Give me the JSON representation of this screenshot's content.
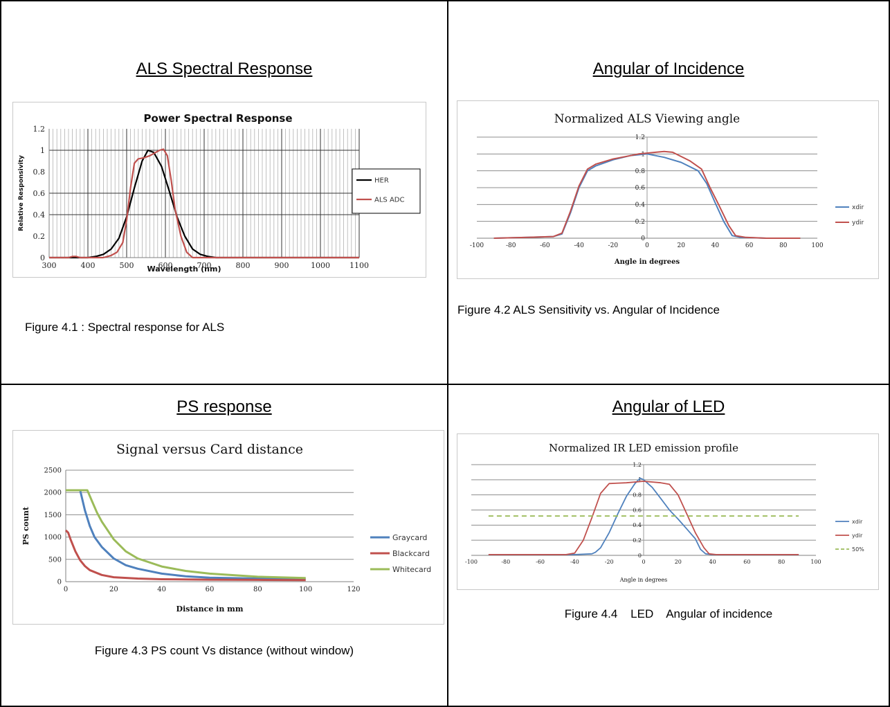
{
  "cells": [
    {
      "title": "ALS Spectral Response",
      "caption": "Figure 4.1 : Spectral response for ALS"
    },
    {
      "title": "Angular of Incidence",
      "caption": "Figure 4.2 ALS Sensitivity vs. Angular of Incidence"
    },
    {
      "title": "PS response",
      "caption": "Figure 4.3 PS count Vs distance (without window)"
    },
    {
      "title": "Angular of LED",
      "caption": "Figure 4.4    LED    Angular of incidence"
    }
  ],
  "chart_data": [
    {
      "type": "line",
      "title": "Power Spectral Response",
      "xlabel": "Wavelength (nm)",
      "ylabel": "Relative Responsivity",
      "xlim": [
        300,
        1100
      ],
      "ylim": [
        0,
        1.2
      ],
      "xticks": [
        "300",
        "400",
        "500",
        "600",
        "700",
        "800",
        "900",
        "1000",
        "1100"
      ],
      "yticks": [
        "0",
        "0.2",
        "0.4",
        "0.6",
        "0.8",
        "1",
        "1.2"
      ],
      "legend_position": "right",
      "colors": {
        "HER": "#000000",
        "ALS ADC": "#c0504d"
      },
      "series": [
        {
          "name": "HER",
          "x": [
            300,
            400,
            420,
            440,
            460,
            480,
            500,
            520,
            540,
            555,
            570,
            590,
            610,
            630,
            650,
            670,
            690,
            710,
            730,
            1100
          ],
          "y": [
            0,
            0,
            0.01,
            0.03,
            0.08,
            0.18,
            0.38,
            0.65,
            0.9,
            1.0,
            0.98,
            0.85,
            0.62,
            0.38,
            0.2,
            0.08,
            0.03,
            0.01,
            0,
            0
          ]
        },
        {
          "name": "ALS ADC",
          "x": [
            300,
            350,
            360,
            370,
            380,
            440,
            460,
            475,
            490,
            500,
            510,
            520,
            530,
            545,
            560,
            575,
            585,
            595,
            605,
            615,
            625,
            640,
            655,
            670,
            1100
          ],
          "y": [
            0,
            0,
            0.01,
            0.01,
            0,
            0,
            0.02,
            0.05,
            0.14,
            0.35,
            0.65,
            0.88,
            0.92,
            0.93,
            0.95,
            0.98,
            1.0,
            1.01,
            0.95,
            0.72,
            0.45,
            0.2,
            0.05,
            0,
            0
          ]
        }
      ]
    },
    {
      "type": "line",
      "title": "Normalized ALS Viewing angle",
      "xlabel": "Angle in degrees",
      "ylabel": "",
      "xlim": [
        -100,
        100
      ],
      "ylim": [
        0,
        1.2
      ],
      "xticks": [
        "-100",
        "-80",
        "-60",
        "-40",
        "-20",
        "0",
        "20",
        "40",
        "60",
        "80",
        "100"
      ],
      "yticks": [
        "0",
        "0.2",
        "0.4",
        "0.6",
        "0.8",
        "1",
        "1.2"
      ],
      "legend_position": "right",
      "colors": {
        "xdir": "#4f81bd",
        "ydir": "#c0504d"
      },
      "series": [
        {
          "name": "xdir",
          "x": [
            -90,
            -70,
            -55,
            -50,
            -45,
            -40,
            -35,
            -30,
            -20,
            -10,
            0,
            10,
            20,
            30,
            35,
            40,
            45,
            50,
            55,
            70,
            90
          ],
          "y": [
            0,
            0.01,
            0.02,
            0.05,
            0.3,
            0.6,
            0.8,
            0.86,
            0.93,
            0.98,
            1.0,
            0.96,
            0.9,
            0.8,
            0.65,
            0.42,
            0.2,
            0.03,
            0.01,
            0,
            0
          ]
        },
        {
          "name": "ydir",
          "x": [
            -90,
            -70,
            -55,
            -50,
            -45,
            -40,
            -35,
            -30,
            -20,
            -10,
            -5,
            0,
            5,
            10,
            15,
            20,
            25,
            32,
            37,
            42,
            48,
            52,
            58,
            70,
            90
          ],
          "y": [
            0,
            0.01,
            0.02,
            0.06,
            0.32,
            0.62,
            0.82,
            0.88,
            0.94,
            0.98,
            1.0,
            1.01,
            1.02,
            1.03,
            1.02,
            0.97,
            0.92,
            0.82,
            0.6,
            0.4,
            0.15,
            0.03,
            0.01,
            0,
            0
          ]
        }
      ]
    },
    {
      "type": "line",
      "title": "Signal versus Card distance",
      "xlabel": "Distance in mm",
      "ylabel": "PS count",
      "xlim": [
        0,
        120
      ],
      "ylim": [
        0,
        2500
      ],
      "xticks": [
        "0",
        "20",
        "40",
        "60",
        "80",
        "100",
        "120"
      ],
      "yticks": [
        "0",
        "500",
        "1000",
        "1500",
        "2000",
        "2500"
      ],
      "legend_position": "right",
      "colors": {
        "Graycard": "#4f81bd",
        "Blackcard": "#c0504d",
        "Whitecard": "#9bbb59"
      },
      "series": [
        {
          "name": "Graycard",
          "x": [
            0,
            6,
            8,
            10,
            12,
            15,
            20,
            25,
            30,
            40,
            50,
            60,
            80,
            100
          ],
          "y": [
            2050,
            2050,
            1600,
            1250,
            1000,
            780,
            520,
            370,
            290,
            180,
            120,
            90,
            70,
            60
          ]
        },
        {
          "name": "Blackcard",
          "x": [
            0,
            1,
            2,
            4,
            6,
            8,
            10,
            15,
            20,
            30,
            40,
            60,
            80,
            100
          ],
          "y": [
            1150,
            1100,
            950,
            680,
            480,
            350,
            260,
            150,
            100,
            70,
            55,
            45,
            40,
            35
          ]
        },
        {
          "name": "Whitecard",
          "x": [
            0,
            9,
            11,
            13,
            15,
            20,
            25,
            30,
            40,
            50,
            60,
            80,
            100
          ],
          "y": [
            2050,
            2050,
            1800,
            1550,
            1350,
            950,
            680,
            520,
            340,
            240,
            180,
            110,
            80
          ]
        }
      ]
    },
    {
      "type": "line",
      "title": "Normalized IR LED emission profile",
      "xlabel": "Angle in degrees",
      "ylabel": "",
      "xlim": [
        -100,
        100
      ],
      "ylim": [
        0,
        1.2
      ],
      "xticks": [
        "-100",
        "-80",
        "-60",
        "-40",
        "-20",
        "0",
        "20",
        "40",
        "60",
        "80",
        "100"
      ],
      "yticks": [
        "0",
        "0.2",
        "0.4",
        "0.6",
        "0.8",
        "1",
        "1.2"
      ],
      "legend_position": "right",
      "colors": {
        "xdir": "#4f81bd",
        "ydir": "#c0504d",
        "50%": "#9bbb59"
      },
      "series": [
        {
          "name": "xdir",
          "x": [
            -90,
            -40,
            -30,
            -28,
            -25,
            -20,
            -15,
            -10,
            -5,
            -2,
            0,
            5,
            10,
            15,
            20,
            25,
            30,
            33,
            36,
            40,
            90
          ],
          "y": [
            0.01,
            0.01,
            0.02,
            0.04,
            0.1,
            0.3,
            0.55,
            0.78,
            0.95,
            1.02,
            1.0,
            0.9,
            0.75,
            0.6,
            0.48,
            0.35,
            0.22,
            0.08,
            0.02,
            0.01,
            0.01
          ]
        },
        {
          "name": "ydir",
          "x": [
            -90,
            -45,
            -40,
            -35,
            -30,
            -25,
            -20,
            -10,
            0,
            10,
            15,
            20,
            25,
            30,
            35,
            38,
            42,
            90
          ],
          "y": [
            0.01,
            0.01,
            0.03,
            0.2,
            0.5,
            0.82,
            0.95,
            0.96,
            0.98,
            0.96,
            0.94,
            0.8,
            0.55,
            0.3,
            0.1,
            0.02,
            0.01,
            0.01
          ]
        },
        {
          "name": "50%",
          "x": [
            -90,
            90
          ],
          "y": [
            0.52,
            0.52
          ],
          "dashed": true
        }
      ]
    }
  ]
}
